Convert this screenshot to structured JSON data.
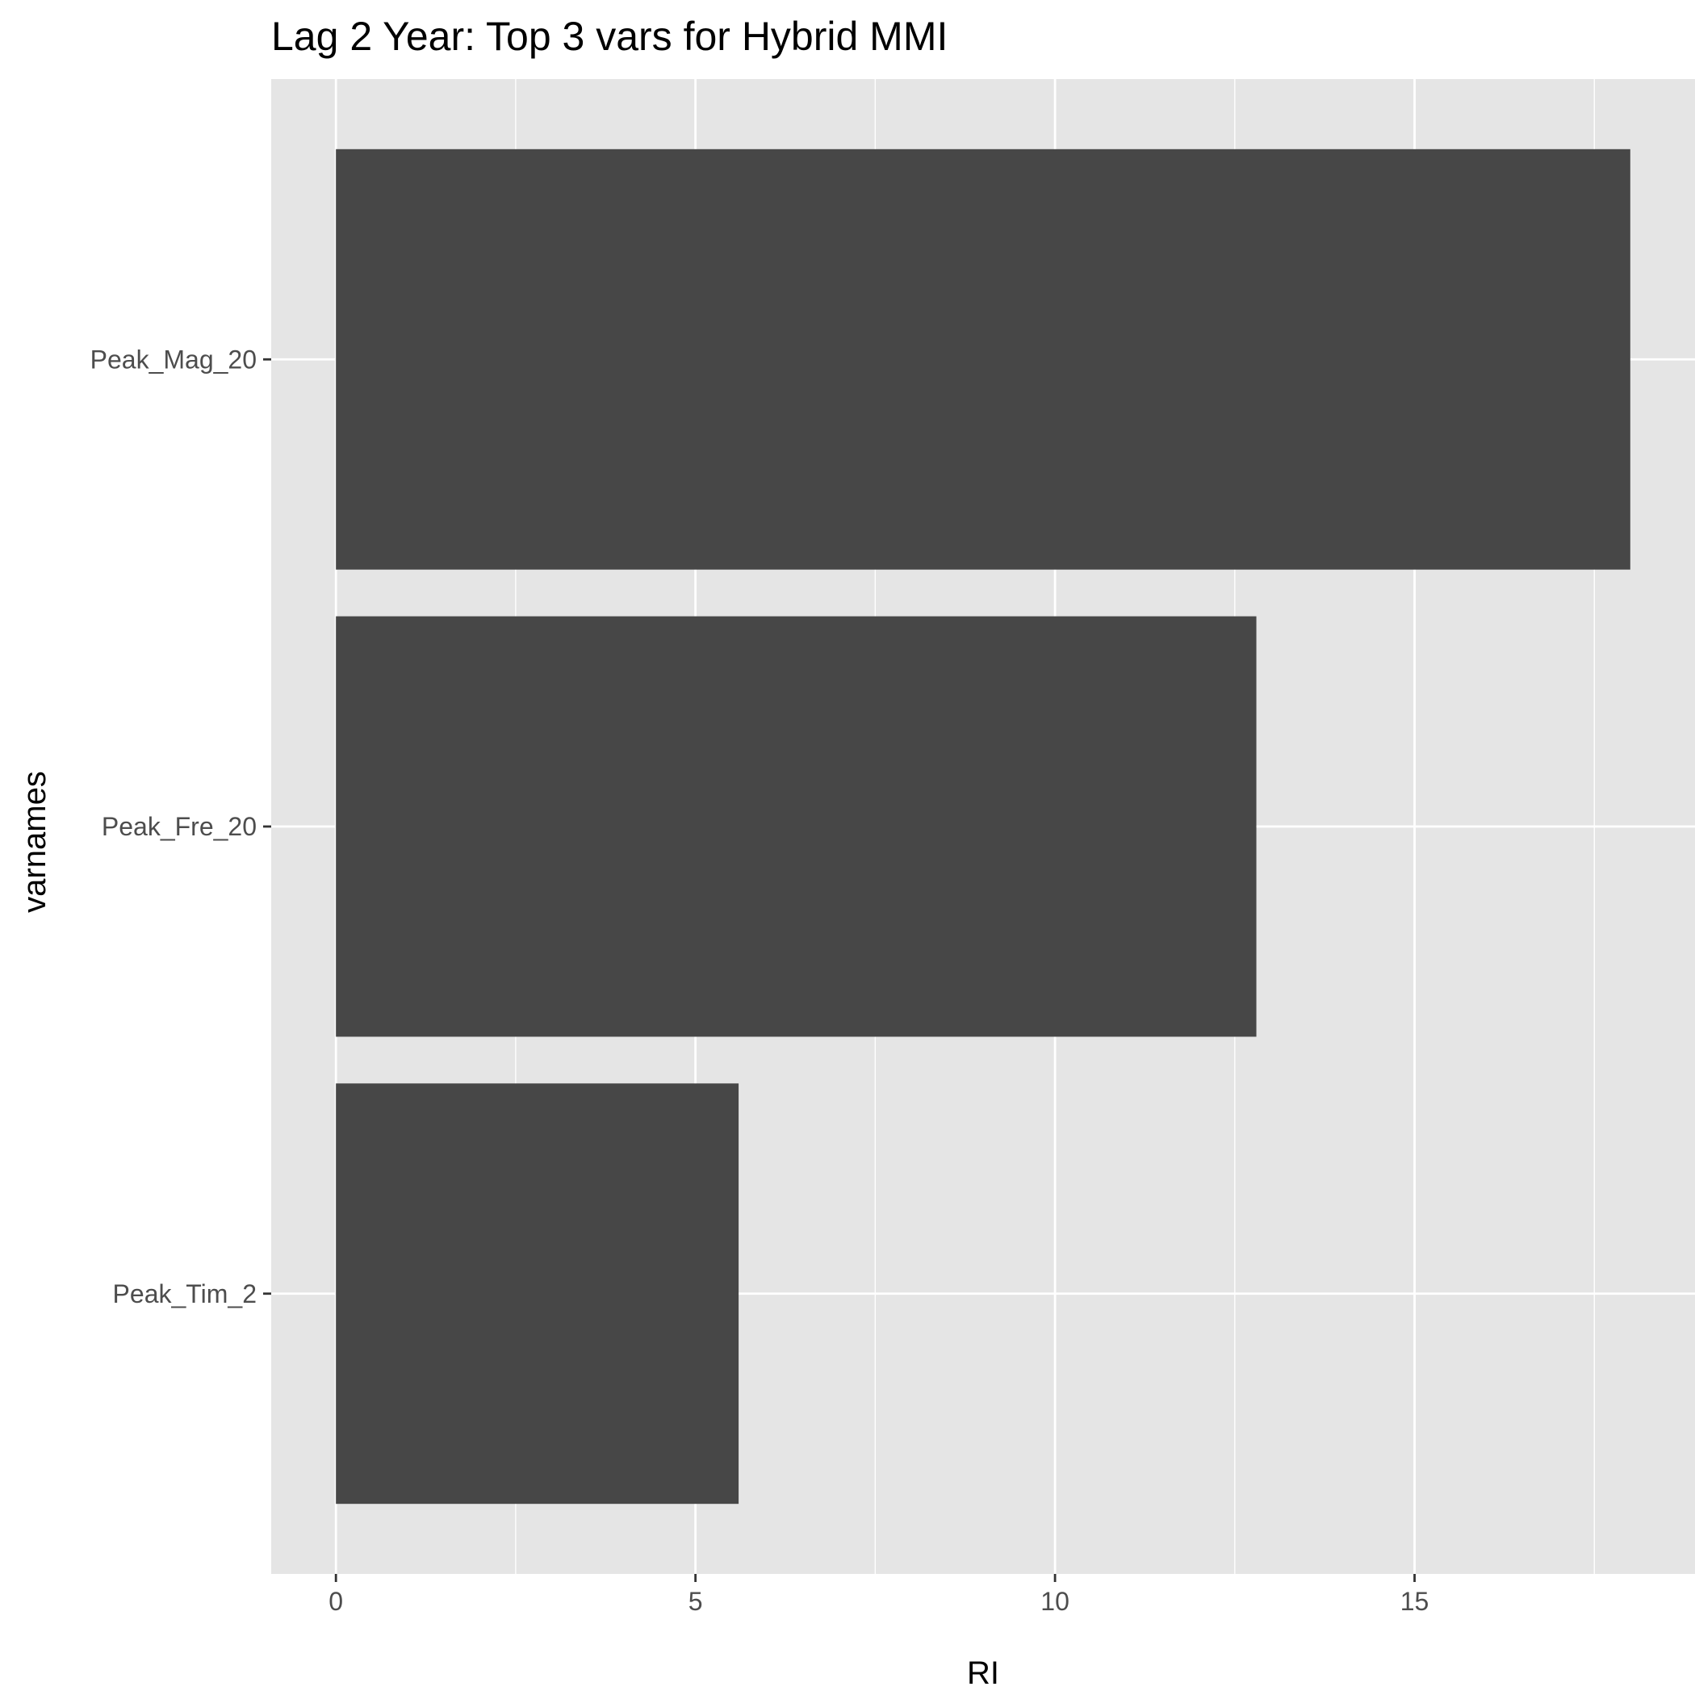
{
  "chart_data": {
    "type": "bar",
    "orientation": "horizontal",
    "title": "Lag 2 Year: Top 3 vars for Hybrid MMI",
    "xlabel": "RI",
    "ylabel": "varnames",
    "categories": [
      "Peak_Mag_20",
      "Peak_Fre_20",
      "Peak_Tim_2"
    ],
    "values": [
      18.0,
      12.8,
      5.6
    ],
    "xlim": [
      -0.9,
      18.9
    ],
    "xticks": [
      0,
      5,
      10,
      15
    ],
    "xtick_labels": [
      "0",
      "5",
      "10",
      "15"
    ],
    "grid": true,
    "legend": "none",
    "colors": {
      "bar": "#474747",
      "panel": "#e5e5e5",
      "grid": "#ffffff",
      "tick_text": "#4d4d4d",
      "tick_mark": "#333333"
    }
  }
}
